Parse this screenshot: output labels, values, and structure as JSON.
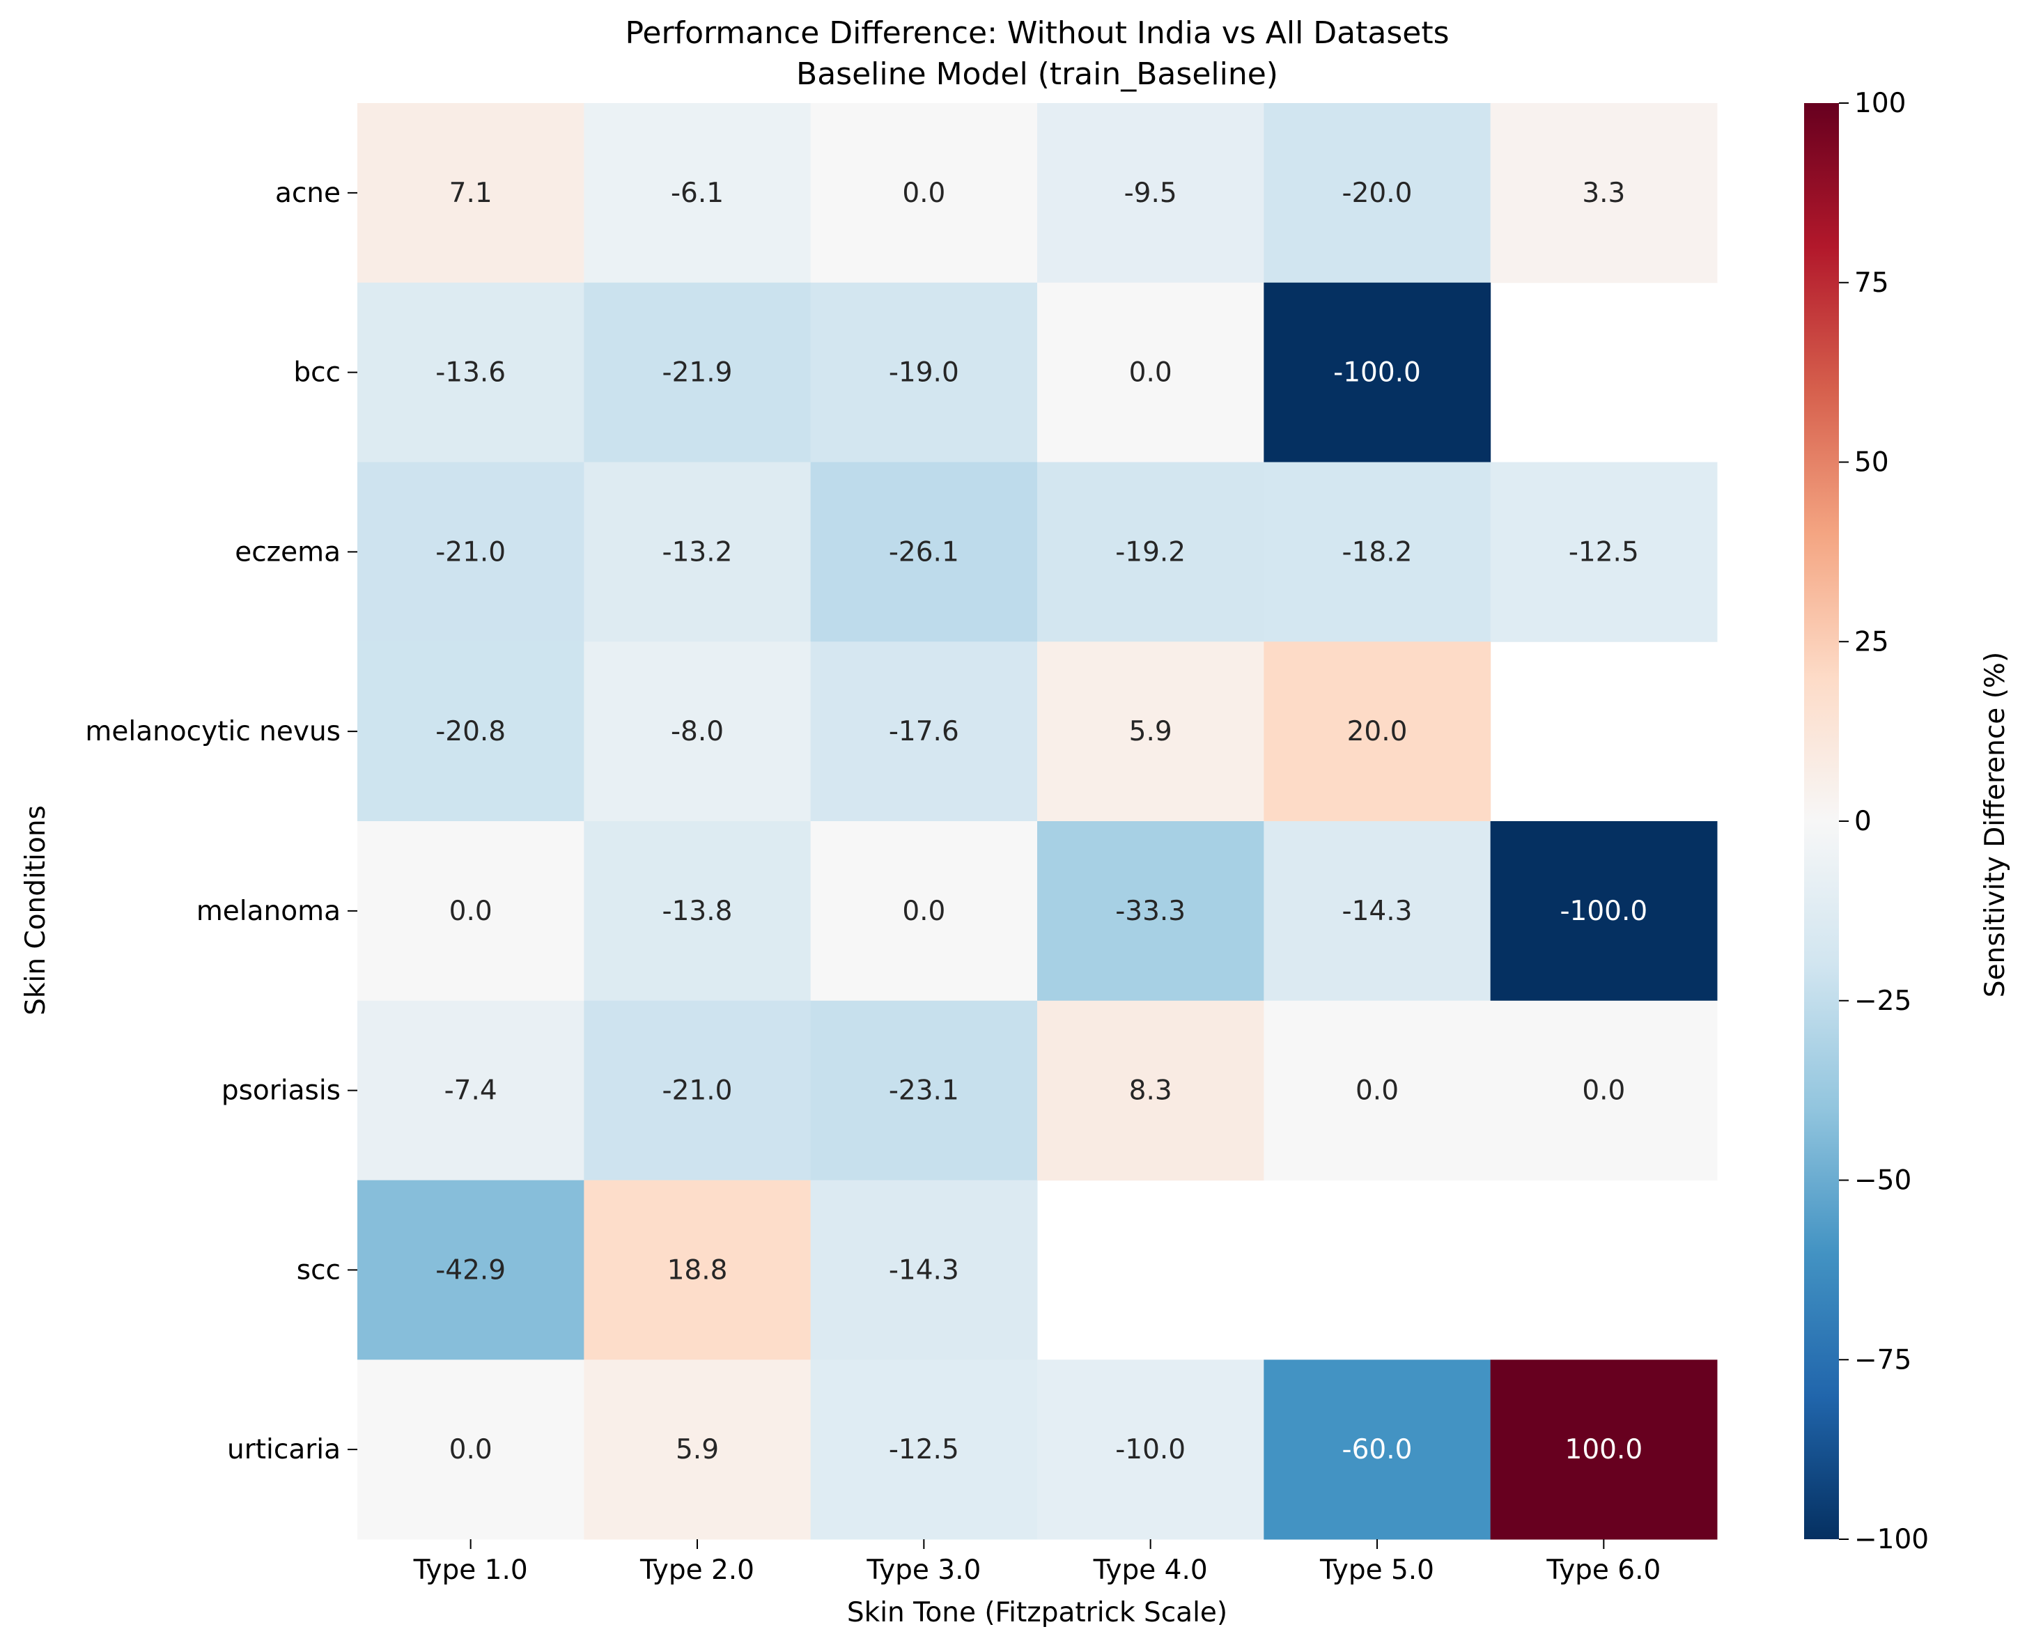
{
  "chart_data": {
    "type": "heatmap",
    "title_line1": "Performance Difference: Without India vs All Datasets",
    "title_line2": "Baseline Model (train_Baseline)",
    "xlabel": "Skin Tone (Fitzpatrick Scale)",
    "ylabel": "Skin Conditions",
    "colorbar_label": "Sensitivity Difference (%)",
    "x_categories": [
      "Type 1.0",
      "Type 2.0",
      "Type 3.0",
      "Type 4.0",
      "Type 5.0",
      "Type 6.0"
    ],
    "y_categories": [
      "acne",
      "bcc",
      "eczema",
      "melanocytic nevus",
      "melanoma",
      "psoriasis",
      "scc",
      "urticaria"
    ],
    "values": [
      [
        7.1,
        -6.1,
        0.0,
        -9.5,
        -20.0,
        3.3
      ],
      [
        -13.6,
        -21.9,
        -19.0,
        0.0,
        -100.0,
        null
      ],
      [
        -21.0,
        -13.2,
        -26.1,
        -19.2,
        -18.2,
        -12.5
      ],
      [
        -20.8,
        -8.0,
        -17.6,
        5.9,
        20.0,
        null
      ],
      [
        0.0,
        -13.8,
        0.0,
        -33.3,
        -14.3,
        -100.0
      ],
      [
        -7.4,
        -21.0,
        -23.1,
        8.3,
        0.0,
        0.0
      ],
      [
        -42.9,
        18.8,
        -14.3,
        null,
        null,
        null
      ],
      [
        0.0,
        5.9,
        -12.5,
        -10.0,
        -60.0,
        100.0
      ]
    ],
    "value_format": "one decimal",
    "colormap": "RdBu_r",
    "vmin": -100,
    "vmax": 100,
    "colorbar_ticks": [
      100,
      75,
      50,
      25,
      0,
      -25,
      -50,
      -75,
      -100
    ],
    "colorbar_tick_labels": [
      "100",
      "75",
      "50",
      "25",
      "0",
      "−25",
      "−50",
      "−75",
      "−100"
    ],
    "missing_cells": "blank (white)"
  }
}
